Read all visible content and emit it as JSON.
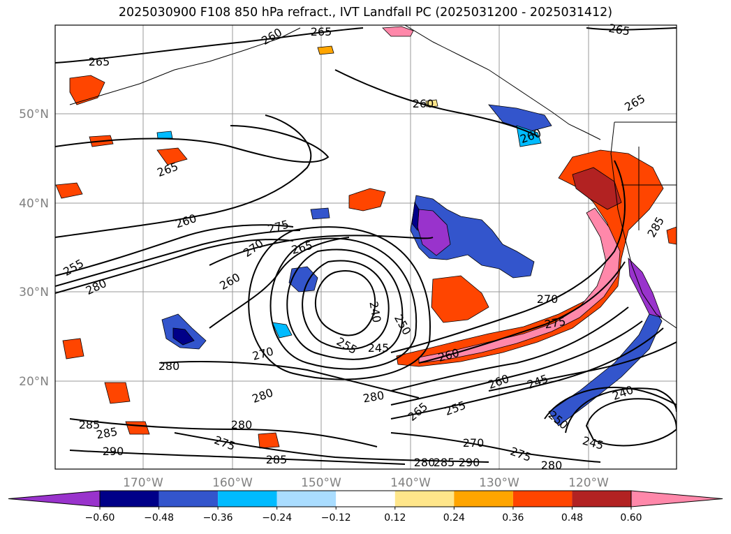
{
  "title": "2025030900 F108 850 hPa refract., IVT Landfall PC (2025031200 - 2025031412)",
  "map": {
    "lat_labels": [
      "50°N",
      "40°N",
      "30°N",
      "20°N"
    ],
    "lon_labels": [
      "170°W",
      "160°W",
      "150°W",
      "140°W",
      "130°W",
      "120°W"
    ],
    "contour_labels": [
      {
        "text": "265"
      },
      {
        "text": "260"
      },
      {
        "text": "265"
      },
      {
        "text": "265"
      },
      {
        "text": "260"
      },
      {
        "text": "265"
      },
      {
        "text": "260"
      },
      {
        "text": "265"
      },
      {
        "text": "260"
      },
      {
        "text": "255"
      },
      {
        "text": "280"
      },
      {
        "text": "275"
      },
      {
        "text": "270"
      },
      {
        "text": "265"
      },
      {
        "text": "260"
      },
      {
        "text": "240"
      },
      {
        "text": "250"
      },
      {
        "text": "255"
      },
      {
        "text": "245"
      },
      {
        "text": "260"
      },
      {
        "text": "270"
      },
      {
        "text": "275"
      },
      {
        "text": "280"
      },
      {
        "text": "270"
      },
      {
        "text": "280"
      },
      {
        "text": "280"
      },
      {
        "text": "260"
      },
      {
        "text": "245"
      },
      {
        "text": "255"
      },
      {
        "text": "265"
      },
      {
        "text": "280"
      },
      {
        "text": "285"
      },
      {
        "text": "285"
      },
      {
        "text": "290"
      },
      {
        "text": "275"
      },
      {
        "text": "280"
      },
      {
        "text": "285"
      },
      {
        "text": "270"
      },
      {
        "text": "275"
      },
      {
        "text": "280"
      },
      {
        "text": "285"
      },
      {
        "text": "290"
      },
      {
        "text": "240"
      },
      {
        "text": "250"
      },
      {
        "text": "245"
      },
      {
        "text": "285"
      }
    ]
  },
  "colorbar": {
    "labels": [
      "−0.60",
      "−0.48",
      "−0.36",
      "−0.24",
      "−0.12",
      "0.12",
      "0.24",
      "0.36",
      "0.48",
      "0.60"
    ],
    "colors": [
      "#9933cc",
      "#000088",
      "#3355cc",
      "#00bbff",
      "#aaddff",
      "#ffffff",
      "#ffe68a",
      "#ffa500",
      "#ff4500",
      "#b22222",
      "#ff88aa"
    ]
  }
}
